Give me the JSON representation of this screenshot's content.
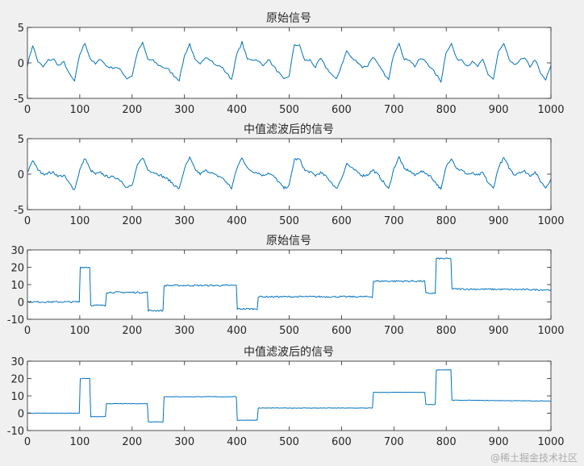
{
  "watermark": "@稀土掘金技术社区",
  "colors": {
    "line": "#0072bd",
    "axis": "#262626",
    "plot_bg": "#ffffff",
    "figure_bg": "#f0f0f0"
  },
  "chart_data": [
    {
      "type": "line",
      "title": "原始信号",
      "xlim": [
        0,
        1000
      ],
      "ylim": [
        -5,
        5
      ],
      "xticks": [
        0,
        100,
        200,
        300,
        400,
        500,
        600,
        700,
        800,
        900,
        1000
      ],
      "yticks": [
        -5,
        0,
        5
      ],
      "x": [
        0,
        10,
        20,
        30,
        40,
        50,
        60,
        70,
        80,
        90,
        100,
        110,
        120,
        130,
        140,
        150,
        160,
        170,
        180,
        190,
        200,
        210,
        220,
        230,
        240,
        250,
        260,
        270,
        280,
        290,
        300,
        310,
        320,
        330,
        340,
        350,
        360,
        370,
        380,
        390,
        400,
        410,
        420,
        430,
        440,
        450,
        460,
        470,
        480,
        490,
        500,
        510,
        520,
        530,
        540,
        550,
        560,
        570,
        580,
        590,
        600,
        610,
        620,
        630,
        640,
        650,
        660,
        670,
        680,
        690,
        700,
        710,
        720,
        730,
        740,
        750,
        760,
        770,
        780,
        790,
        800,
        810,
        820,
        830,
        840,
        850,
        860,
        870,
        880,
        890,
        900,
        910,
        920,
        930,
        940,
        950,
        960,
        970,
        980,
        990,
        1000
      ],
      "values": [
        -0.3,
        2.5,
        0.2,
        -0.6,
        0.4,
        0.5,
        -0.4,
        0.1,
        -1.6,
        -2.6,
        1.2,
        2.8,
        0.6,
        -0.2,
        0.6,
        -0.4,
        -0.7,
        -0.6,
        -1.2,
        -2.2,
        -1.8,
        1.5,
        2.8,
        0.5,
        0.3,
        -0.3,
        -0.6,
        -1.0,
        -1.8,
        -2.4,
        1.0,
        2.7,
        0.4,
        -0.3,
        0.9,
        0.5,
        -0.4,
        -0.5,
        -1.4,
        -2.3,
        1.2,
        2.9,
        0.5,
        0.5,
        0.4,
        -0.5,
        0.6,
        -0.5,
        -1.4,
        -2.4,
        -1.8,
        2.6,
        2.4,
        0.3,
        0.4,
        -0.6,
        0.6,
        -0.6,
        -1.5,
        -2.4,
        -0.3,
        1.7,
        0.6,
        0.2,
        -0.6,
        -0.4,
        0.9,
        -0.3,
        -1.4,
        -2.4,
        1.3,
        2.9,
        0.4,
        0.5,
        -0.5,
        0.6,
        0.3,
        -0.6,
        -1.6,
        -2.6,
        1.6,
        2.7,
        0.5,
        0.5,
        -0.4,
        0.1,
        -0.5,
        0.4,
        -1.6,
        -2.3,
        1.6,
        2.6,
        0.5,
        -0.4,
        0.4,
        0.6,
        -0.5,
        0.5,
        -1.5,
        -2.4,
        -0.4
      ]
    },
    {
      "type": "line",
      "title": "中值滤波后的信号",
      "xlim": [
        0,
        1000
      ],
      "ylim": [
        -5,
        5
      ],
      "xticks": [
        0,
        100,
        200,
        300,
        400,
        500,
        600,
        700,
        800,
        900,
        1000
      ],
      "yticks": [
        -5,
        0,
        5
      ],
      "x": [
        0,
        10,
        20,
        30,
        40,
        50,
        60,
        70,
        80,
        90,
        100,
        110,
        120,
        130,
        140,
        150,
        160,
        170,
        180,
        190,
        200,
        210,
        220,
        230,
        240,
        250,
        260,
        270,
        280,
        290,
        300,
        310,
        320,
        330,
        340,
        350,
        360,
        370,
        380,
        390,
        400,
        410,
        420,
        430,
        440,
        450,
        460,
        470,
        480,
        490,
        500,
        510,
        520,
        530,
        540,
        550,
        560,
        570,
        580,
        590,
        600,
        610,
        620,
        630,
        640,
        650,
        660,
        670,
        680,
        690,
        700,
        710,
        720,
        730,
        740,
        750,
        760,
        770,
        780,
        790,
        800,
        810,
        820,
        830,
        840,
        850,
        860,
        870,
        880,
        890,
        900,
        910,
        920,
        930,
        940,
        950,
        960,
        970,
        980,
        990,
        1000
      ],
      "values": [
        0.2,
        2.0,
        0.6,
        0.0,
        0.2,
        0.2,
        -0.3,
        -0.2,
        -1.3,
        -2.2,
        0.6,
        2.3,
        0.6,
        0.0,
        0.2,
        -0.3,
        -0.4,
        -0.5,
        -1.0,
        -1.9,
        -1.6,
        1.2,
        2.4,
        0.6,
        0.3,
        0.0,
        -0.4,
        -0.8,
        -1.5,
        -2.1,
        0.8,
        2.3,
        0.7,
        0.0,
        0.5,
        0.3,
        -0.2,
        -0.4,
        -1.1,
        -2.0,
        0.8,
        2.4,
        0.8,
        0.4,
        0.2,
        -0.2,
        0.2,
        -0.3,
        -1.1,
        -2.0,
        -1.6,
        2.1,
        2.1,
        0.5,
        0.3,
        -0.2,
        0.2,
        -0.3,
        -1.1,
        -2.1,
        -0.6,
        1.5,
        0.8,
        0.3,
        -0.2,
        -0.1,
        0.6,
        -0.1,
        -1.1,
        -2.1,
        0.8,
        2.4,
        0.7,
        0.5,
        -0.2,
        0.4,
        0.2,
        -0.3,
        -1.2,
        -2.2,
        1.1,
        2.3,
        0.8,
        0.5,
        0.0,
        0.1,
        -0.2,
        0.2,
        -1.2,
        -2.0,
        1.0,
        2.3,
        0.9,
        -0.1,
        0.3,
        0.4,
        -0.2,
        0.3,
        -1.0,
        -1.9,
        -0.7
      ]
    },
    {
      "type": "line",
      "title": "原始信号",
      "xlim": [
        0,
        1000
      ],
      "ylim": [
        -10,
        30
      ],
      "xticks": [
        0,
        100,
        200,
        300,
        400,
        500,
        600,
        700,
        800,
        900,
        1000
      ],
      "yticks": [
        -10,
        0,
        10,
        20,
        30
      ],
      "x": [
        0,
        99,
        101,
        119,
        121,
        149,
        151,
        229,
        231,
        259,
        261,
        399,
        401,
        439,
        441,
        659,
        661,
        759,
        761,
        779,
        781,
        809,
        811,
        1000
      ],
      "values": [
        0,
        0,
        20,
        20,
        -2,
        -2,
        5.5,
        5.5,
        -5,
        -5,
        9.5,
        9.5,
        -4,
        -4,
        3,
        3,
        12,
        12,
        5,
        5,
        25,
        25,
        7.5,
        7
      ],
      "noise": 0.9
    },
    {
      "type": "line",
      "title": "中值滤波后的信号",
      "xlim": [
        0,
        1000
      ],
      "ylim": [
        -10,
        30
      ],
      "xticks": [
        0,
        100,
        200,
        300,
        400,
        500,
        600,
        700,
        800,
        900,
        1000
      ],
      "yticks": [
        -10,
        0,
        10,
        20,
        30
      ],
      "x": [
        0,
        99,
        101,
        119,
        121,
        149,
        151,
        229,
        231,
        259,
        261,
        399,
        401,
        439,
        441,
        659,
        661,
        759,
        761,
        779,
        781,
        809,
        811,
        1000
      ],
      "values": [
        0,
        0,
        20,
        20,
        -2,
        -2,
        5.5,
        5.5,
        -5,
        -5,
        9.5,
        9.5,
        -4,
        -4,
        3,
        3,
        12,
        12,
        5,
        5,
        25,
        25,
        7.5,
        7
      ],
      "noise": 0.25
    }
  ]
}
